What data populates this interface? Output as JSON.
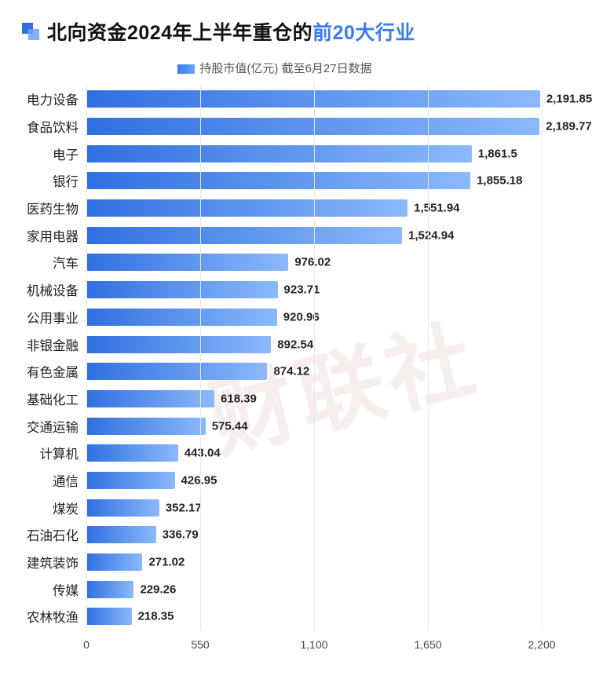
{
  "title": {
    "plain": "北向资金2024年上半年重仓的",
    "highlight": "前20大行业",
    "fontsize": 25,
    "color_plain": "#111111",
    "color_highlight": "#3b7bf0"
  },
  "legend": {
    "label": "持股市值(亿元) 截至6月27日数据",
    "swatch_gradient_from": "#3a7ae8",
    "swatch_gradient_to": "#6aa6f7"
  },
  "chart": {
    "type": "horizontal_bar",
    "x_min": 0,
    "x_max": 2200,
    "x_ticks": [
      0,
      550,
      1100,
      1650,
      2200
    ],
    "x_tick_labels": [
      "0",
      "550",
      "1,100",
      "1,650",
      "2,200"
    ],
    "grid_color": "#e5e9f0",
    "background_color": "#ffffff",
    "bar_gradient_from": "#2f6fe0",
    "bar_gradient_to": "#8bb9fb",
    "value_label_fontsize": 15,
    "category_fontsize": 16.5,
    "axis_label_fontsize": 14,
    "categories": [
      "电力设备",
      "食品饮料",
      "电子",
      "银行",
      "医药生物",
      "家用电器",
      "汽车",
      "机械设备",
      "公用事业",
      "非银金融",
      "有色金属",
      "基础化工",
      "交通运输",
      "计算机",
      "通信",
      "煤炭",
      "石油石化",
      "建筑装饰",
      "传媒",
      "农林牧渔"
    ],
    "values": [
      2191.85,
      2189.77,
      1861.5,
      1855.18,
      1551.94,
      1524.94,
      976.02,
      923.71,
      920.96,
      892.54,
      874.12,
      618.39,
      575.44,
      443.04,
      426.95,
      352.17,
      336.79,
      271.02,
      229.26,
      218.35
    ],
    "value_labels": [
      "2,191.85",
      "2,189.77",
      "1,861.5",
      "1,855.18",
      "1,551.94",
      "1,524.94",
      "976.02",
      "923.71",
      "920.96",
      "892.54",
      "874.12",
      "618.39",
      "575.44",
      "443.04",
      "426.95",
      "352.17",
      "336.79",
      "271.02",
      "229.26",
      "218.35"
    ]
  },
  "watermark": {
    "text": "财联社",
    "color": "#e9d0d0",
    "opacity": 0.35
  }
}
